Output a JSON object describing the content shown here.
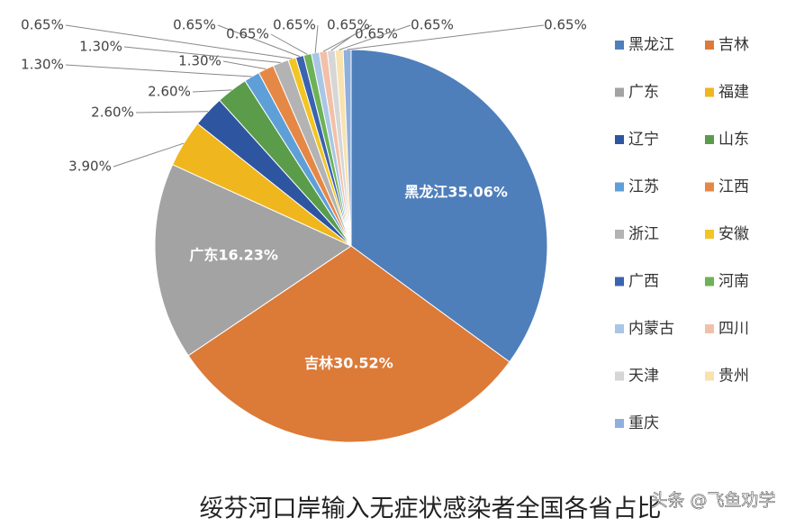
{
  "chart_data": {
    "type": "pie",
    "title": "绥芬河口岸输入无症状感染者全国各省占比",
    "watermark": "头条 @飞鱼劝学",
    "categories": [
      "黑龙江",
      "吉林",
      "广东",
      "福建",
      "辽宁",
      "山东",
      "江苏",
      "江西",
      "浙江",
      "安徽",
      "广西",
      "河南",
      "内蒙古",
      "四川",
      "天津",
      "贵州",
      "重庆"
    ],
    "values": [
      35.06,
      30.52,
      16.23,
      3.9,
      2.6,
      2.6,
      1.3,
      1.3,
      1.3,
      0.65,
      0.65,
      0.65,
      0.65,
      0.65,
      0.65,
      0.65,
      0.65
    ],
    "value_labels": [
      "黑龙江35.06%",
      "吉林30.52%",
      "广东16.23%",
      "3.90%",
      "2.60%",
      "2.60%",
      "1.30%",
      "1.30%",
      "1.30%",
      "0.65%",
      "0.65%",
      "0.65%",
      "0.65%",
      "0.65%",
      "0.65%",
      "0.65%",
      "0.65%"
    ],
    "colors": [
      "#4e7fbb",
      "#dc7a38",
      "#a3a3a3",
      "#f0b61d",
      "#2e55a0",
      "#5a9c4a",
      "#5f9fd8",
      "#e58846",
      "#b3b3b3",
      "#f2c523",
      "#3a63b0",
      "#6db257",
      "#a9c6e6",
      "#f2c0a8",
      "#d6d6d6",
      "#f8e2ae",
      "#8fb0dd"
    ],
    "legend": "right"
  }
}
